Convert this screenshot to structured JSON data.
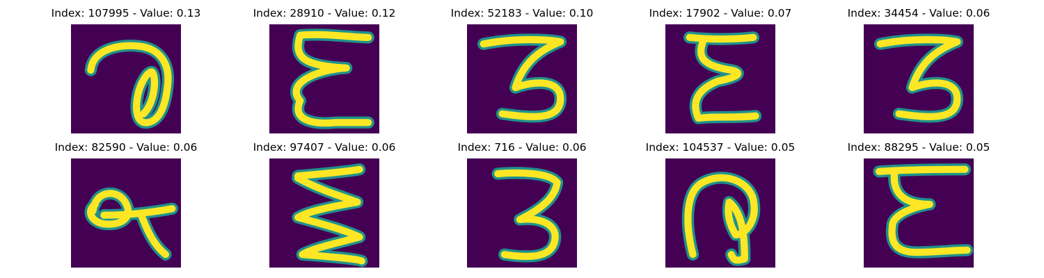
{
  "colors": {
    "background": "#440154",
    "mid": "#21918c",
    "stroke": "#fde725"
  },
  "panels": [
    {
      "title": "Index: 107995 - Value: 0.13",
      "glyph": "loop-a"
    },
    {
      "title": "Index: 28910 - Value: 0.12",
      "glyph": "epsilon"
    },
    {
      "title": "Index: 52183 - Value: 0.10",
      "glyph": "three"
    },
    {
      "title": "Index: 17902 - Value: 0.07",
      "glyph": "epsilon-narrow"
    },
    {
      "title": "Index: 34454 - Value: 0.06",
      "glyph": "three"
    },
    {
      "title": "Index: 82590 - Value: 0.06",
      "glyph": "alpha"
    },
    {
      "title": "Index: 97407 - Value: 0.06",
      "glyph": "zigzag"
    },
    {
      "title": "Index: 716 - Value: 0.06",
      "glyph": "three-bold"
    },
    {
      "title": "Index: 104537 - Value: 0.05",
      "glyph": "hook"
    },
    {
      "title": "Index: 88295 - Value: 0.05",
      "glyph": "epsilon-wide"
    }
  ]
}
